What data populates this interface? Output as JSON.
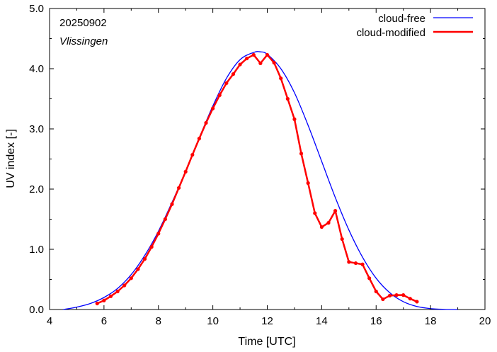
{
  "chart_data": {
    "type": "line",
    "xlabel": "Time  [UTC]",
    "ylabel": "UV index  [-]",
    "xlim": [
      4,
      20
    ],
    "ylim": [
      0,
      5
    ],
    "x_ticks": [
      "4",
      "6",
      "8",
      "10",
      "12",
      "14",
      "16",
      "18",
      "20"
    ],
    "y_ticks": [
      "0.0",
      "1.0",
      "2.0",
      "3.0",
      "4.0",
      "5.0"
    ],
    "grid": false,
    "legend_position": "top-right",
    "annotations": {
      "date": "20250902",
      "location": "Vlissingen"
    },
    "series": [
      {
        "name": "cloud-free",
        "color": "#0000ff",
        "x": [
          4.5,
          5.0,
          5.5,
          6.0,
          6.5,
          7.0,
          7.5,
          8.0,
          8.5,
          9.0,
          9.5,
          10.0,
          10.5,
          11.0,
          11.5,
          11.75,
          12.0,
          12.5,
          13.0,
          13.5,
          14.0,
          14.5,
          15.0,
          15.5,
          16.0,
          16.5,
          17.0,
          17.5,
          18.0,
          18.5,
          19.0
        ],
        "y": [
          0.0,
          0.04,
          0.1,
          0.2,
          0.35,
          0.58,
          0.9,
          1.3,
          1.78,
          2.3,
          2.85,
          3.38,
          3.84,
          4.15,
          4.27,
          4.28,
          4.24,
          4.0,
          3.6,
          3.06,
          2.46,
          1.86,
          1.32,
          0.87,
          0.52,
          0.28,
          0.13,
          0.05,
          0.015,
          0.003,
          0.0
        ]
      },
      {
        "name": "cloud-modified",
        "color": "#ff0000",
        "x": [
          5.75,
          6.0,
          6.25,
          6.5,
          6.75,
          7.0,
          7.25,
          7.5,
          7.75,
          8.0,
          8.25,
          8.5,
          8.75,
          9.0,
          9.25,
          9.5,
          9.75,
          10.0,
          10.25,
          10.5,
          10.75,
          11.0,
          11.25,
          11.5,
          11.75,
          12.0,
          12.25,
          12.5,
          12.75,
          13.0,
          13.25,
          13.5,
          13.75,
          14.0,
          14.25,
          14.5,
          14.75,
          15.0,
          15.25,
          15.5,
          15.75,
          16.0,
          16.25,
          16.5,
          16.75,
          17.0,
          17.25,
          17.5
        ],
        "y": [
          0.1,
          0.15,
          0.22,
          0.3,
          0.4,
          0.52,
          0.67,
          0.84,
          1.04,
          1.26,
          1.5,
          1.75,
          2.02,
          2.29,
          2.57,
          2.84,
          3.1,
          3.34,
          3.56,
          3.76,
          3.91,
          4.07,
          4.17,
          4.23,
          4.09,
          4.23,
          4.1,
          3.84,
          3.5,
          3.16,
          2.59,
          2.1,
          1.6,
          1.37,
          1.44,
          1.64,
          1.17,
          0.79,
          0.77,
          0.75,
          0.52,
          0.3,
          0.17,
          0.23,
          0.24,
          0.24,
          0.18,
          0.13
        ]
      }
    ]
  }
}
